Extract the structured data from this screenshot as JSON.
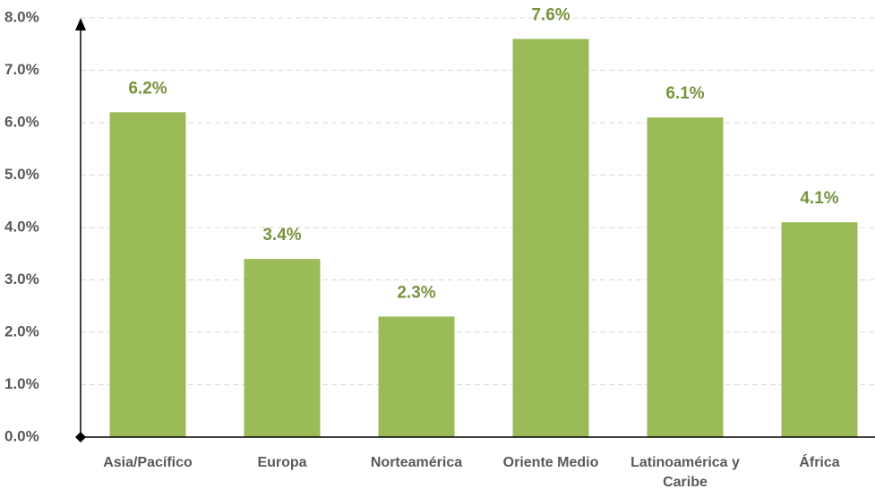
{
  "chart_data": {
    "type": "bar",
    "categories": [
      "Asia/Pacífico",
      "Europa",
      "Norteamérica",
      "Oriente Medio",
      "Latinoamérica y Caribe",
      "África"
    ],
    "values": [
      6.2,
      3.4,
      2.3,
      7.6,
      6.1,
      4.1
    ],
    "value_labels": [
      "6.2%",
      "3.4%",
      "2.3%",
      "7.6%",
      "6.1%",
      "4.1%"
    ],
    "color": "#9bbb59",
    "ylim": [
      0,
      8
    ],
    "yticks": [
      {
        "value": 0,
        "label": "0.0%"
      },
      {
        "value": 1,
        "label": "1.0%"
      },
      {
        "value": 2,
        "label": "2.0%"
      },
      {
        "value": 3,
        "label": "3.0%"
      },
      {
        "value": 4,
        "label": "4.0%"
      },
      {
        "value": 5,
        "label": "5.0%"
      },
      {
        "value": 6,
        "label": "6.0%"
      },
      {
        "value": 7,
        "label": "7.0%"
      },
      {
        "value": 8,
        "label": "8.0%"
      }
    ],
    "grid": true
  }
}
